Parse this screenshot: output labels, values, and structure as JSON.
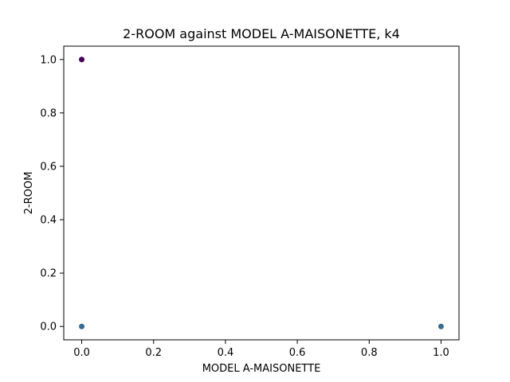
{
  "chart_data": {
    "type": "scatter",
    "title": "2-ROOM against MODEL A-MAISONETTE, k4",
    "xlabel": "MODEL A-MAISONETTE",
    "ylabel": "2-ROOM",
    "xlim": [
      -0.05,
      1.05
    ],
    "ylim": [
      -0.05,
      1.05
    ],
    "xticks": [
      0.0,
      0.2,
      0.4,
      0.6,
      0.8,
      1.0
    ],
    "yticks": [
      0.0,
      0.2,
      0.4,
      0.6,
      0.8,
      1.0
    ],
    "xtick_labels": [
      "0.0",
      "0.2",
      "0.4",
      "0.6",
      "0.8",
      "1.0"
    ],
    "ytick_labels": [
      "0.0",
      "0.2",
      "0.4",
      "0.6",
      "0.8",
      "1.0"
    ],
    "grid": false,
    "series": [
      {
        "color": "#440154",
        "points": [
          {
            "x": 0.0,
            "y": 1.0
          }
        ]
      },
      {
        "color": "#3b6a93",
        "points": [
          {
            "x": 0.0,
            "y": 0.0
          },
          {
            "x": 1.0,
            "y": 0.0
          }
        ]
      }
    ]
  }
}
